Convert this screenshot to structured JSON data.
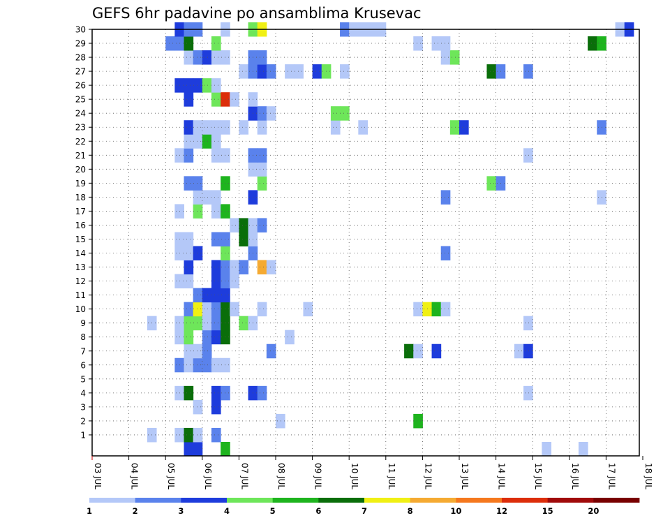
{
  "chart_data": {
    "type": "heatmap",
    "title": "GEFS 6hr padavine po ansamblima Krusevac",
    "xlabel": "",
    "ylabel": "",
    "x_tick_labels": [
      "03 JUL",
      "04 JUL",
      "05 JUL",
      "06 JUL",
      "07 JUL",
      "08 JUL",
      "09 JUL",
      "10 JUL",
      "11 JUL",
      "12 JUL",
      "13 JUL",
      "14 JUL",
      "15 JUL",
      "16 JUL",
      "17 JUL",
      "18 JUL"
    ],
    "y_tick_labels": [
      "1",
      "2",
      "3",
      "4",
      "5",
      "6",
      "7",
      "8",
      "9",
      "10",
      "11",
      "12",
      "13",
      "14",
      "15",
      "16",
      "17",
      "18",
      "19",
      "20",
      "21",
      "22",
      "23",
      "24",
      "25",
      "26",
      "27",
      "28",
      "29",
      "30"
    ],
    "members_range": [
      0,
      30
    ],
    "grid": "dotted",
    "colorbar": {
      "position": "bottom",
      "boundaries": [
        "1",
        "2",
        "3",
        "4",
        "5",
        "6",
        "7",
        "8",
        "10",
        "12",
        "15",
        "20"
      ],
      "colors": [
        "#b4c8f8",
        "#5a82ec",
        "#1e3cdc",
        "#6ee65a",
        "#1eb41e",
        "#0a6e0a",
        "#f0f014",
        "#f5aa32",
        "#f5781e",
        "#dc2d0a",
        "#a00a0a",
        "#780000"
      ]
    },
    "cells": [
      [
        0,
        5.75,
        2
      ],
      [
        0,
        5.5,
        2
      ],
      [
        0,
        6.5,
        4
      ],
      [
        0,
        15.25,
        0
      ],
      [
        0,
        16.25,
        0
      ],
      [
        1,
        4.5,
        0
      ],
      [
        1,
        5.25,
        0
      ],
      [
        1,
        5.5,
        5
      ],
      [
        1,
        5.75,
        0
      ],
      [
        1,
        6.25,
        1
      ],
      [
        2,
        8,
        0
      ],
      [
        2,
        11.75,
        4
      ],
      [
        3,
        5.75,
        0
      ],
      [
        3,
        6.25,
        2
      ],
      [
        4,
        5.25,
        0
      ],
      [
        4,
        5.5,
        5
      ],
      [
        4,
        6.25,
        2
      ],
      [
        4,
        6.5,
        1
      ],
      [
        4,
        7.25,
        2
      ],
      [
        4,
        7.5,
        1
      ],
      [
        4,
        14.75,
        0
      ],
      [
        6,
        5.25,
        1
      ],
      [
        6,
        5.5,
        0
      ],
      [
        6,
        5.75,
        1
      ],
      [
        6,
        6,
        1
      ],
      [
        6,
        6.25,
        0
      ],
      [
        6,
        6.5,
        0
      ],
      [
        7,
        5.5,
        0
      ],
      [
        7,
        5.75,
        0
      ],
      [
        7,
        6,
        1
      ],
      [
        7,
        7.75,
        1
      ],
      [
        7,
        11.5,
        5
      ],
      [
        7,
        11.75,
        0
      ],
      [
        7,
        12.25,
        2
      ],
      [
        7,
        14.5,
        0
      ],
      [
        7,
        14.75,
        2
      ],
      [
        8,
        5.25,
        0
      ],
      [
        8,
        5.5,
        3
      ],
      [
        8,
        6,
        1
      ],
      [
        8,
        6.25,
        2
      ],
      [
        8,
        6.5,
        5
      ],
      [
        8,
        8.25,
        0
      ],
      [
        9,
        4.5,
        0
      ],
      [
        9,
        5.25,
        0
      ],
      [
        9,
        5.5,
        3
      ],
      [
        9,
        5.75,
        3
      ],
      [
        9,
        6,
        0
      ],
      [
        9,
        6.25,
        1
      ],
      [
        9,
        6.5,
        5
      ],
      [
        9,
        7,
        3
      ],
      [
        9,
        7.25,
        0
      ],
      [
        9,
        14.75,
        0
      ],
      [
        10,
        5.5,
        1
      ],
      [
        10,
        5.75,
        6
      ],
      [
        10,
        6,
        0
      ],
      [
        10,
        6.25,
        1
      ],
      [
        10,
        6.5,
        5
      ],
      [
        10,
        6.75,
        0
      ],
      [
        10,
        7.5,
        0
      ],
      [
        10,
        8.75,
        0
      ],
      [
        10,
        11.75,
        0
      ],
      [
        10,
        12,
        6
      ],
      [
        10,
        12.25,
        4
      ],
      [
        10,
        12.5,
        0
      ],
      [
        11,
        5.75,
        1
      ],
      [
        11,
        6,
        2
      ],
      [
        11,
        6.25,
        2
      ],
      [
        11,
        6.5,
        2
      ],
      [
        12,
        5.25,
        0
      ],
      [
        12,
        5.5,
        0
      ],
      [
        12,
        6.25,
        2
      ],
      [
        12,
        6.5,
        1
      ],
      [
        12,
        6.75,
        0
      ],
      [
        13,
        5.5,
        2
      ],
      [
        13,
        6.25,
        2
      ],
      [
        13,
        6.5,
        1
      ],
      [
        13,
        6.75,
        0
      ],
      [
        13,
        7,
        1
      ],
      [
        13,
        7.5,
        7
      ],
      [
        13,
        7.75,
        0
      ],
      [
        14,
        5.25,
        0
      ],
      [
        14,
        5.5,
        0
      ],
      [
        14,
        5.75,
        2
      ],
      [
        14,
        6.5,
        3
      ],
      [
        14,
        7.25,
        1
      ],
      [
        14,
        12.5,
        1
      ],
      [
        15,
        5.25,
        0
      ],
      [
        15,
        5.5,
        0
      ],
      [
        15,
        6.25,
        1
      ],
      [
        15,
        6.5,
        1
      ],
      [
        15,
        7,
        5
      ],
      [
        15,
        7.25,
        0
      ],
      [
        16,
        6.75,
        0
      ],
      [
        16,
        7,
        5
      ],
      [
        16,
        7.25,
        0
      ],
      [
        16,
        7.5,
        1
      ],
      [
        17,
        5.25,
        0
      ],
      [
        17,
        5.75,
        3
      ],
      [
        17,
        6.25,
        0
      ],
      [
        17,
        6.5,
        4
      ],
      [
        18,
        5.75,
        0
      ],
      [
        18,
        6,
        0
      ],
      [
        18,
        6.25,
        0
      ],
      [
        18,
        7.25,
        2
      ],
      [
        18,
        12.5,
        1
      ],
      [
        18,
        16.75,
        0
      ],
      [
        19,
        5.5,
        1
      ],
      [
        19,
        5.75,
        1
      ],
      [
        19,
        6.5,
        4
      ],
      [
        19,
        7.5,
        3
      ],
      [
        19,
        13.75,
        3
      ],
      [
        19,
        14,
        1
      ],
      [
        20,
        7.25,
        0
      ],
      [
        20,
        7.5,
        0
      ],
      [
        21,
        5.25,
        0
      ],
      [
        21,
        5.5,
        1
      ],
      [
        21,
        6.25,
        0
      ],
      [
        21,
        6.5,
        0
      ],
      [
        21,
        7.25,
        1
      ],
      [
        21,
        7.5,
        1
      ],
      [
        21,
        14.75,
        0
      ],
      [
        22,
        5.5,
        0
      ],
      [
        22,
        5.75,
        0
      ],
      [
        22,
        6,
        4
      ],
      [
        22,
        6.25,
        0
      ],
      [
        23,
        5.5,
        2
      ],
      [
        23,
        5.75,
        0
      ],
      [
        23,
        6,
        0
      ],
      [
        23,
        6.25,
        0
      ],
      [
        23,
        6.5,
        0
      ],
      [
        23,
        7,
        0
      ],
      [
        23,
        7.5,
        0
      ],
      [
        23,
        9.5,
        0
      ],
      [
        23,
        10.25,
        0
      ],
      [
        23,
        12.75,
        3
      ],
      [
        23,
        13,
        2
      ],
      [
        23,
        16.75,
        1
      ],
      [
        24,
        7.25,
        2
      ],
      [
        24,
        7.5,
        1
      ],
      [
        24,
        7.75,
        0
      ],
      [
        24,
        9.5,
        3
      ],
      [
        24,
        9.75,
        3
      ],
      [
        25,
        5.5,
        2
      ],
      [
        25,
        6.25,
        3
      ],
      [
        25,
        6.5,
        9
      ],
      [
        25,
        6.75,
        0
      ],
      [
        25,
        7.25,
        0
      ],
      [
        26,
        5.25,
        2
      ],
      [
        26,
        5.5,
        2
      ],
      [
        26,
        5.75,
        2
      ],
      [
        26,
        6,
        3
      ],
      [
        26,
        6.25,
        0
      ],
      [
        27,
        7,
        0
      ],
      [
        27,
        7.25,
        1
      ],
      [
        27,
        7.5,
        2
      ],
      [
        27,
        7.75,
        1
      ],
      [
        27,
        8.25,
        0
      ],
      [
        27,
        8.5,
        0
      ],
      [
        27,
        9,
        2
      ],
      [
        27,
        9.25,
        3
      ],
      [
        27,
        9.75,
        0
      ],
      [
        27,
        13.75,
        5
      ],
      [
        27,
        14,
        1
      ],
      [
        27,
        14.75,
        1
      ],
      [
        28,
        5.5,
        0
      ],
      [
        28,
        5.75,
        1
      ],
      [
        28,
        6,
        2
      ],
      [
        28,
        6.25,
        0
      ],
      [
        28,
        6.5,
        0
      ],
      [
        28,
        7.25,
        1
      ],
      [
        28,
        7.5,
        1
      ],
      [
        28,
        12.5,
        0
      ],
      [
        28,
        12.75,
        3
      ],
      [
        29,
        5,
        1
      ],
      [
        29,
        5.25,
        1
      ],
      [
        29,
        5.5,
        5
      ],
      [
        29,
        6.25,
        3
      ],
      [
        29,
        11.75,
        0
      ],
      [
        29,
        12.25,
        0
      ],
      [
        29,
        12.5,
        0
      ],
      [
        29,
        16.5,
        5
      ],
      [
        29,
        16.75,
        4
      ],
      [
        30,
        5.25,
        2
      ],
      [
        30,
        5.5,
        1
      ],
      [
        30,
        5.75,
        1
      ],
      [
        30,
        6.5,
        0
      ],
      [
        30,
        7.25,
        3
      ],
      [
        30,
        7.5,
        6
      ],
      [
        30,
        9.75,
        1
      ],
      [
        30,
        10,
        0
      ],
      [
        30,
        10.25,
        0
      ],
      [
        30,
        10.5,
        0
      ],
      [
        30,
        10.75,
        0
      ],
      [
        30,
        17.25,
        0
      ],
      [
        30,
        17.5,
        2
      ]
    ]
  }
}
